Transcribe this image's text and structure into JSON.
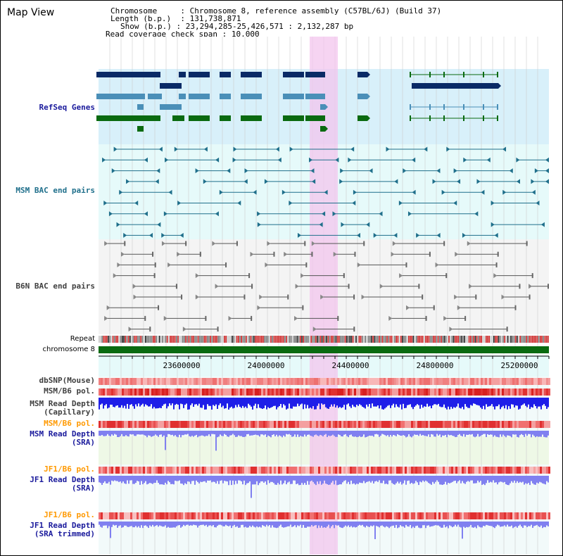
{
  "title": "Map View",
  "header": {
    "chromosome_label": "Chromosome",
    "chromosome_value": "Chromosome 8, reference assembly (C57BL/6J) (Build 37)",
    "length_label": "Length (b.p.)",
    "length_value": "131,738,871",
    "show_label": "Show (b.p.)",
    "show_value": "23,294,285-25,426,571 : 2,132,287 bp",
    "coverage_label": "Read coverage check span",
    "coverage_value": "10,000"
  },
  "tracks": {
    "refseq": "RefSeq Genes",
    "msm_bac": "MSM BAC end pairs",
    "b6n_bac": "B6N BAC end pairs",
    "repeat": "Repeat",
    "chromosome": "chromosome 8",
    "dbsnp": "dbSNP(Mouse)",
    "msm_b6_pol_1": "MSM/B6 pol.",
    "msm_depth_cap_1": "MSM Read Depth",
    "msm_depth_cap_2": "(Capillary)",
    "msm_b6_pol_2": "MSM/B6 pol.",
    "msm_depth_sra_1": "MSM Read Depth",
    "msm_depth_sra_2": "(SRA)",
    "jf1_b6_pol_1": "JF1/B6 pol.",
    "jf1_depth_sra_1": "JF1 Read Depth",
    "jf1_depth_sra_2": "(SRA)",
    "jf1_b6_pol_2": "JF1/B6 pol.",
    "jf1_depth_trim_1": "JF1 Read Depth",
    "jf1_depth_trim_2": "(SRA trimmed)"
  },
  "axis_ticks": [
    "23600000",
    "24000000",
    "24400000",
    "24800000",
    "25200000"
  ],
  "colors": {
    "refseq_dark": "#0a2a66",
    "refseq_light": "#4a8fb8",
    "refseq_green": "#0a6a10",
    "msm_bac": "#1f6f8b",
    "b6n_bac": "#555555",
    "chromosome": "#0a6a10",
    "highlight": "#f3c6ee",
    "track_bg_blue": "#d8f0fa",
    "track_bg_cyan": "#e6fafa",
    "depth_blue": "#1e1ee8",
    "depth_light": "#8080f0",
    "pol_red": "#e84040"
  }
}
